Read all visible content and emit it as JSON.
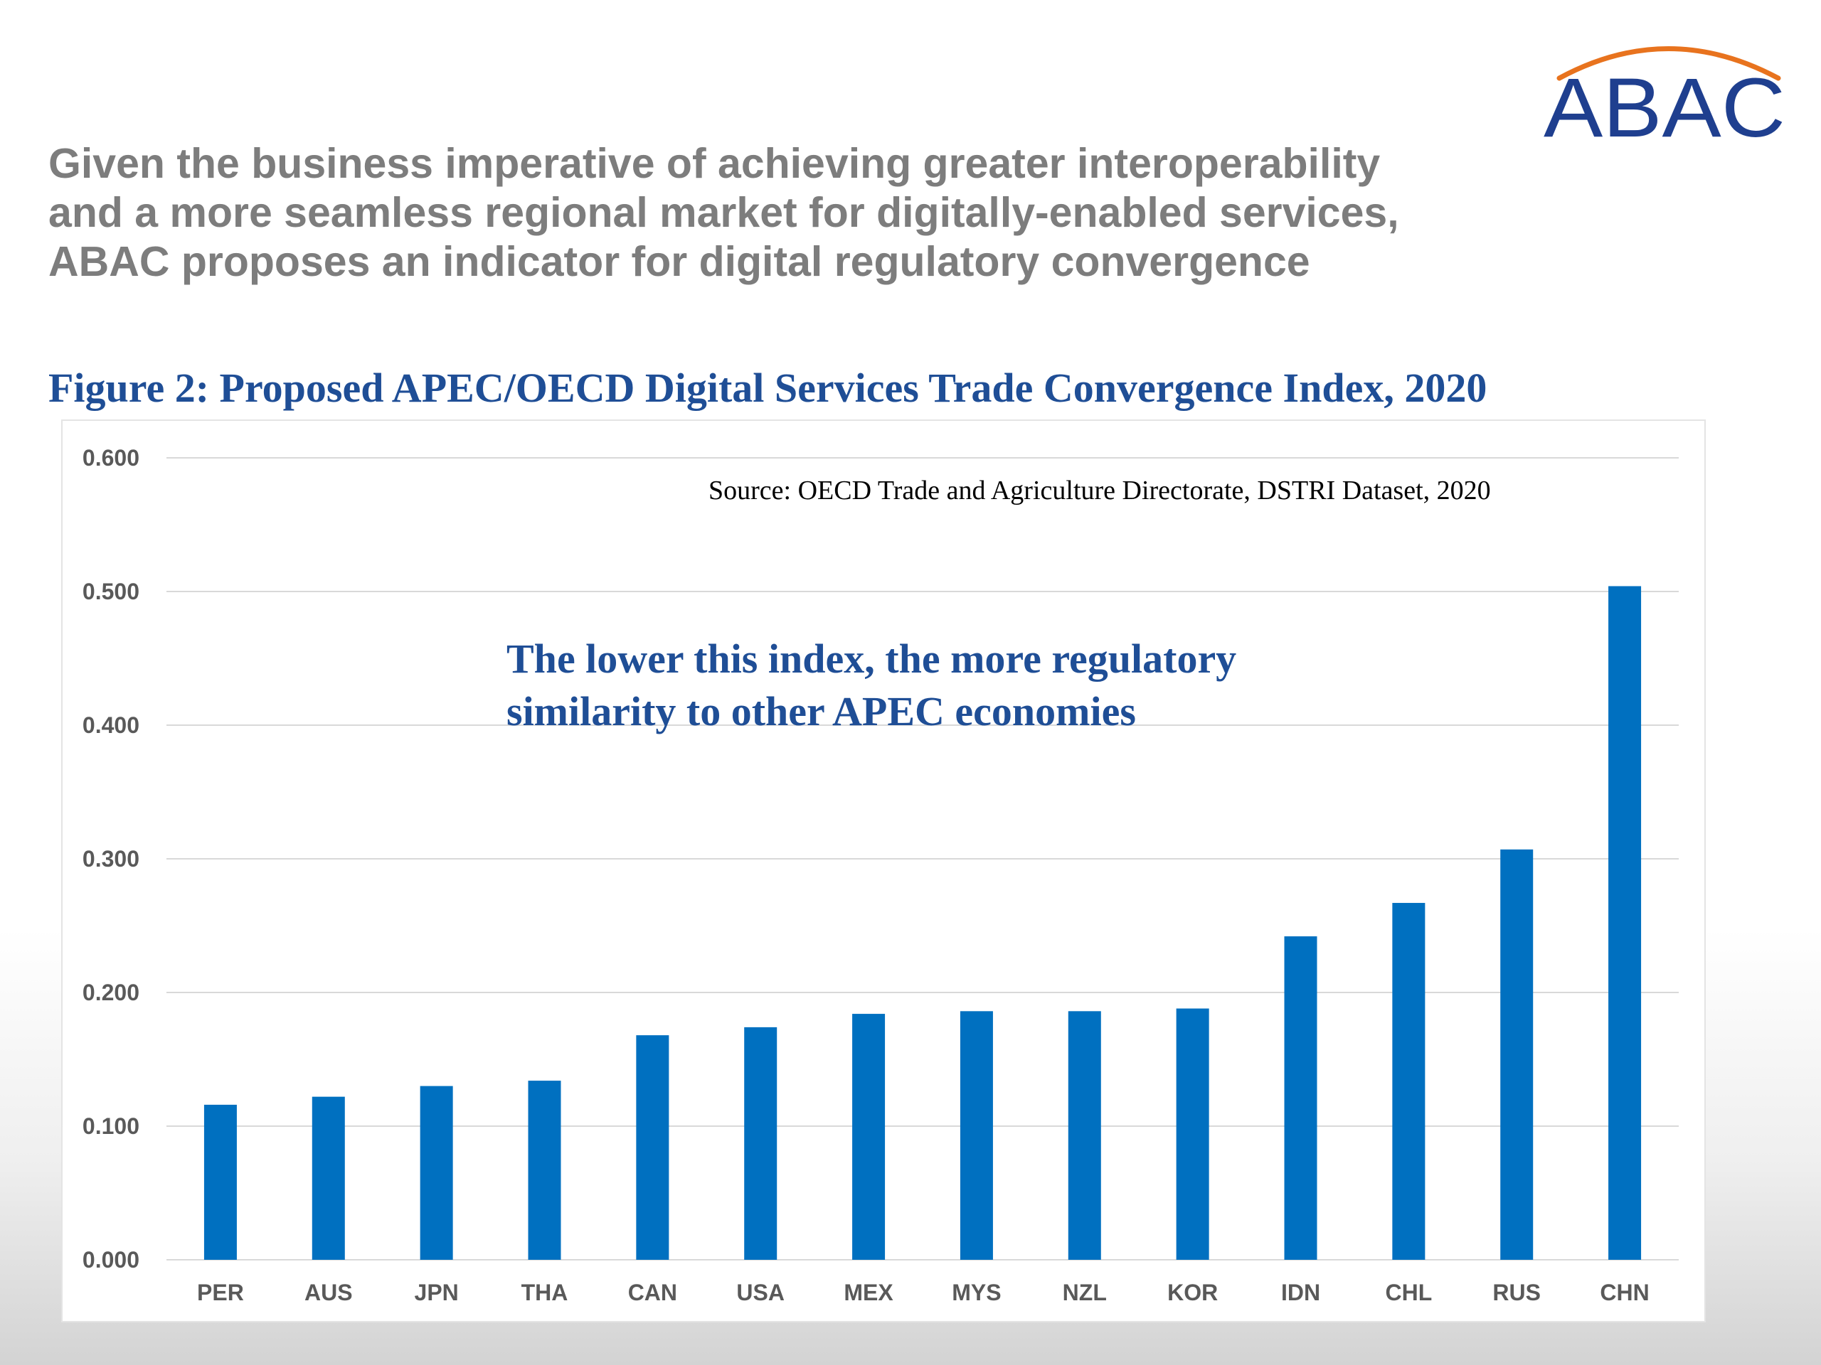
{
  "logo": {
    "text": "ABAC",
    "text_color": "#1f3f8f",
    "arc_color": "#e8731e"
  },
  "headline": [
    "Given the business imperative of achieving greater interoperability",
    "and a more seamless regional market for digitally-enabled services,",
    "ABAC proposes an indicator for digital regulatory convergence"
  ],
  "figure_title": "Figure 2: Proposed APEC/OECD Digital Services Trade Convergence Index, 2020",
  "source_note": "Source: OECD Trade and Agriculture Directorate, DSTRI Dataset, 2020",
  "annotation": [
    "The lower this index, the more regulatory",
    "similarity to other APEC economies"
  ],
  "colors": {
    "bar": "#0070c0",
    "title": "#1f4e96",
    "headline": "#7d7d7d",
    "grid": "#d9d9d9",
    "tick_text": "#595959"
  },
  "chart_data": {
    "type": "bar",
    "categories": [
      "PER",
      "AUS",
      "JPN",
      "THA",
      "CAN",
      "USA",
      "MEX",
      "MYS",
      "NZL",
      "KOR",
      "IDN",
      "CHL",
      "RUS",
      "CHN"
    ],
    "values": [
      0.116,
      0.122,
      0.13,
      0.134,
      0.168,
      0.174,
      0.184,
      0.186,
      0.186,
      0.188,
      0.242,
      0.267,
      0.307,
      0.504
    ],
    "ylim": [
      0,
      0.6
    ],
    "yticks": [
      "0.000",
      "0.100",
      "0.200",
      "0.300",
      "0.400",
      "0.500",
      "0.600"
    ],
    "grid": true,
    "legend": "none"
  }
}
